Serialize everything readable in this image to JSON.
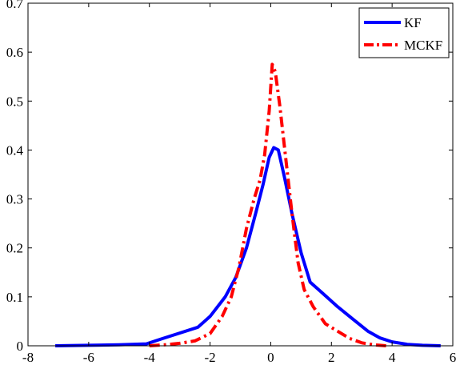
{
  "chart_data": {
    "type": "line",
    "title": "",
    "xlabel": "",
    "ylabel": "",
    "xlim": [
      -8,
      6
    ],
    "ylim": [
      0,
      0.7
    ],
    "xticks": [
      -8,
      -6,
      -4,
      -2,
      0,
      2,
      4,
      6
    ],
    "yticks": [
      0,
      0.1,
      0.2,
      0.3,
      0.4,
      0.5,
      0.6,
      0.7
    ],
    "xtick_labels": [
      "-8",
      "-6",
      "-4",
      "-2",
      "0",
      "2",
      "4",
      "6"
    ],
    "ytick_labels": [
      "0",
      "0.1",
      "0.2",
      "0.3",
      "0.4",
      "0.5",
      "0.6",
      "0.7"
    ],
    "grid": false,
    "legend_position": "top-right",
    "series": [
      {
        "name": "KF",
        "color": "#0000ff",
        "style": "solid",
        "x": [
          -7.1,
          -6.0,
          -5.0,
          -4.1,
          -3.6,
          -3.0,
          -2.4,
          -2.0,
          -1.5,
          -1.15,
          -0.8,
          -0.5,
          -0.25,
          -0.05,
          0.1,
          0.25,
          0.45,
          0.7,
          1.0,
          1.3,
          1.7,
          2.2,
          2.7,
          3.2,
          3.6,
          4.0,
          4.5,
          5.0,
          5.6
        ],
        "y": [
          0.0,
          0.001,
          0.002,
          0.004,
          0.014,
          0.026,
          0.038,
          0.06,
          0.1,
          0.14,
          0.2,
          0.27,
          0.33,
          0.385,
          0.405,
          0.4,
          0.345,
          0.27,
          0.19,
          0.13,
          0.108,
          0.08,
          0.055,
          0.03,
          0.016,
          0.008,
          0.003,
          0.001,
          0.0
        ]
      },
      {
        "name": "MCKF",
        "color": "#ff0000",
        "style": "dash-dot",
        "x": [
          -4.0,
          -3.5,
          -3.0,
          -2.5,
          -2.0,
          -1.6,
          -1.3,
          -1.05,
          -0.8,
          -0.55,
          -0.35,
          -0.2,
          -0.05,
          0.05,
          0.15,
          0.3,
          0.5,
          0.7,
          0.9,
          1.1,
          1.4,
          1.8,
          2.2,
          2.6,
          3.0,
          3.4,
          3.8
        ],
        "y": [
          0.0,
          0.002,
          0.005,
          0.01,
          0.025,
          0.06,
          0.1,
          0.16,
          0.24,
          0.3,
          0.34,
          0.39,
          0.48,
          0.575,
          0.56,
          0.49,
          0.38,
          0.27,
          0.17,
          0.115,
          0.08,
          0.045,
          0.03,
          0.015,
          0.006,
          0.002,
          0.0
        ]
      }
    ]
  }
}
